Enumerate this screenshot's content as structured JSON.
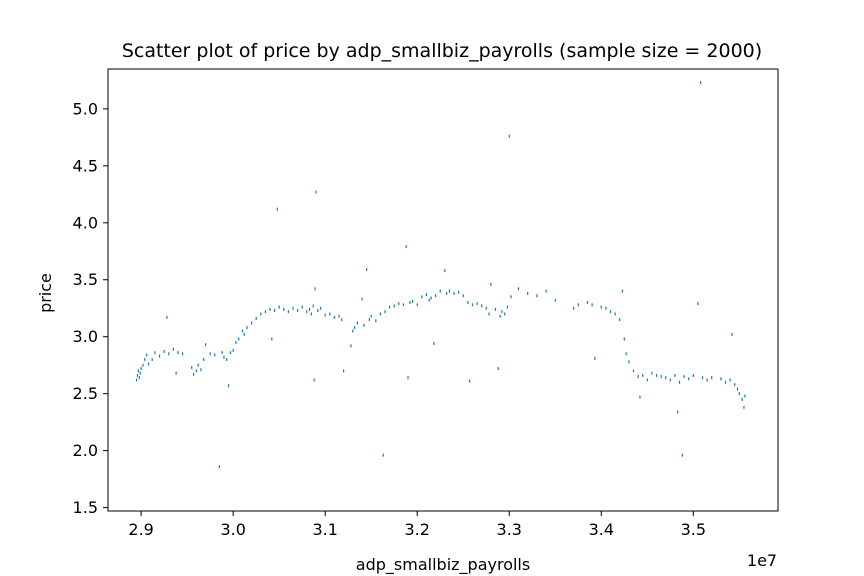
{
  "chart_data": {
    "type": "scatter",
    "title": "Scatter plot of price by adp_smallbiz_payrolls (sample size = 2000)",
    "xlabel": "adp_smallbiz_payrolls",
    "ylabel": "price",
    "x_offset_label": "1e7",
    "xlim": [
      2.864,
      3.592
    ],
    "ylim": [
      1.47,
      5.35
    ],
    "xticks": [
      2.9,
      3.0,
      3.1,
      3.2,
      3.3,
      3.4,
      3.5
    ],
    "yticks": [
      1.5,
      2.0,
      2.5,
      3.0,
      3.5,
      4.0,
      4.5,
      5.0
    ],
    "xtick_labels": [
      "2.9",
      "3.0",
      "3.1",
      "3.2",
      "3.3",
      "3.4",
      "3.5"
    ],
    "ytick_labels": [
      "1.5",
      "2.0",
      "2.5",
      "3.0",
      "3.5",
      "4.0",
      "4.5",
      "5.0"
    ],
    "grid": false,
    "marker_color": "#1f77b4",
    "series": [
      {
        "points": [
          [
            2.895,
            2.62
          ],
          [
            2.896,
            2.66
          ],
          [
            2.897,
            2.7
          ],
          [
            2.898,
            2.64
          ],
          [
            2.899,
            2.68
          ],
          [
            2.9,
            2.72
          ],
          [
            2.902,
            2.75
          ],
          [
            2.904,
            2.8
          ],
          [
            2.906,
            2.84
          ],
          [
            2.908,
            2.76
          ],
          [
            2.912,
            2.8
          ],
          [
            2.915,
            2.86
          ],
          [
            2.92,
            2.83
          ],
          [
            2.925,
            2.87
          ],
          [
            2.928,
            3.17
          ],
          [
            2.93,
            2.85
          ],
          [
            2.935,
            2.89
          ],
          [
            2.938,
            2.68
          ],
          [
            2.94,
            2.86
          ],
          [
            2.945,
            2.85
          ],
          [
            2.955,
            2.73
          ],
          [
            2.957,
            2.67
          ],
          [
            2.96,
            2.7
          ],
          [
            2.962,
            2.75
          ],
          [
            2.965,
            2.71
          ],
          [
            2.968,
            2.8
          ],
          [
            2.97,
            2.93
          ],
          [
            2.975,
            2.85
          ],
          [
            2.98,
            2.84
          ],
          [
            2.985,
            1.86
          ],
          [
            2.988,
            2.86
          ],
          [
            2.99,
            2.82
          ],
          [
            2.993,
            2.8
          ],
          [
            2.995,
            2.57
          ],
          [
            2.997,
            2.86
          ],
          [
            3.0,
            2.88
          ],
          [
            3.003,
            2.95
          ],
          [
            3.006,
            2.98
          ],
          [
            3.01,
            3.05
          ],
          [
            3.012,
            3.02
          ],
          [
            3.015,
            3.08
          ],
          [
            3.02,
            3.12
          ],
          [
            3.025,
            3.16
          ],
          [
            3.03,
            3.2
          ],
          [
            3.035,
            3.22
          ],
          [
            3.04,
            3.24
          ],
          [
            3.042,
            2.98
          ],
          [
            3.045,
            3.23
          ],
          [
            3.048,
            4.12
          ],
          [
            3.05,
            3.26
          ],
          [
            3.055,
            3.24
          ],
          [
            3.06,
            3.22
          ],
          [
            3.065,
            3.25
          ],
          [
            3.07,
            3.23
          ],
          [
            3.075,
            3.26
          ],
          [
            3.08,
            3.22
          ],
          [
            3.083,
            3.24
          ],
          [
            3.085,
            3.2
          ],
          [
            3.087,
            3.27
          ],
          [
            3.088,
            2.62
          ],
          [
            3.089,
            3.42
          ],
          [
            3.09,
            4.27
          ],
          [
            3.092,
            3.23
          ],
          [
            3.095,
            3.25
          ],
          [
            3.1,
            3.19
          ],
          [
            3.105,
            3.2
          ],
          [
            3.11,
            3.17
          ],
          [
            3.115,
            3.18
          ],
          [
            3.118,
            3.15
          ],
          [
            3.12,
            2.7
          ],
          [
            3.128,
            2.92
          ],
          [
            3.13,
            3.05
          ],
          [
            3.132,
            3.08
          ],
          [
            3.135,
            3.12
          ],
          [
            3.14,
            3.33
          ],
          [
            3.142,
            3.1
          ],
          [
            3.145,
            3.59
          ],
          [
            3.148,
            3.15
          ],
          [
            3.15,
            3.18
          ],
          [
            3.155,
            3.14
          ],
          [
            3.16,
            3.2
          ],
          [
            3.163,
            1.96
          ],
          [
            3.165,
            3.22
          ],
          [
            3.17,
            3.26
          ],
          [
            3.175,
            3.27
          ],
          [
            3.18,
            3.29
          ],
          [
            3.185,
            3.28
          ],
          [
            3.188,
            3.79
          ],
          [
            3.19,
            2.64
          ],
          [
            3.192,
            3.3
          ],
          [
            3.195,
            3.31
          ],
          [
            3.2,
            3.28
          ],
          [
            3.205,
            3.35
          ],
          [
            3.21,
            3.37
          ],
          [
            3.213,
            3.32
          ],
          [
            3.215,
            3.34
          ],
          [
            3.218,
            2.94
          ],
          [
            3.22,
            3.36
          ],
          [
            3.225,
            3.4
          ],
          [
            3.23,
            3.58
          ],
          [
            3.232,
            3.38
          ],
          [
            3.235,
            3.4
          ],
          [
            3.24,
            3.38
          ],
          [
            3.245,
            3.39
          ],
          [
            3.25,
            3.36
          ],
          [
            3.255,
            3.3
          ],
          [
            3.257,
            2.61
          ],
          [
            3.26,
            3.28
          ],
          [
            3.265,
            3.29
          ],
          [
            3.27,
            3.27
          ],
          [
            3.275,
            3.25
          ],
          [
            3.278,
            3.2
          ],
          [
            3.28,
            3.46
          ],
          [
            3.285,
            3.24
          ],
          [
            3.288,
            2.72
          ],
          [
            3.29,
            3.18
          ],
          [
            3.292,
            3.22
          ],
          [
            3.295,
            3.2
          ],
          [
            3.298,
            3.26
          ],
          [
            3.3,
            4.76
          ],
          [
            3.302,
            3.35
          ],
          [
            3.31,
            3.42
          ],
          [
            3.32,
            3.38
          ],
          [
            3.33,
            3.36
          ],
          [
            3.34,
            3.4
          ],
          [
            3.35,
            3.32
          ],
          [
            3.37,
            3.25
          ],
          [
            3.375,
            3.28
          ],
          [
            3.385,
            3.3
          ],
          [
            3.39,
            3.28
          ],
          [
            3.393,
            2.81
          ],
          [
            3.4,
            3.26
          ],
          [
            3.405,
            3.25
          ],
          [
            3.41,
            3.22
          ],
          [
            3.415,
            3.2
          ],
          [
            3.42,
            3.15
          ],
          [
            3.423,
            3.4
          ],
          [
            3.425,
            2.98
          ],
          [
            3.427,
            2.85
          ],
          [
            3.43,
            2.78
          ],
          [
            3.435,
            2.7
          ],
          [
            3.44,
            2.65
          ],
          [
            3.442,
            2.47
          ],
          [
            3.445,
            2.66
          ],
          [
            3.45,
            2.62
          ],
          [
            3.455,
            2.68
          ],
          [
            3.46,
            2.66
          ],
          [
            3.465,
            2.65
          ],
          [
            3.47,
            2.64
          ],
          [
            3.475,
            2.62
          ],
          [
            3.48,
            2.66
          ],
          [
            3.483,
            2.34
          ],
          [
            3.485,
            2.6
          ],
          [
            3.488,
            1.96
          ],
          [
            3.49,
            2.65
          ],
          [
            3.495,
            2.63
          ],
          [
            3.5,
            2.66
          ],
          [
            3.505,
            3.29
          ],
          [
            3.508,
            5.23
          ],
          [
            3.51,
            2.64
          ],
          [
            3.515,
            2.62
          ],
          [
            3.52,
            2.64
          ],
          [
            3.53,
            2.63
          ],
          [
            3.535,
            2.6
          ],
          [
            3.54,
            2.62
          ],
          [
            3.542,
            3.02
          ],
          [
            3.545,
            2.58
          ],
          [
            3.548,
            2.54
          ],
          [
            3.55,
            2.5
          ],
          [
            3.553,
            2.45
          ],
          [
            3.555,
            2.38
          ],
          [
            3.556,
            2.48
          ]
        ]
      }
    ]
  }
}
